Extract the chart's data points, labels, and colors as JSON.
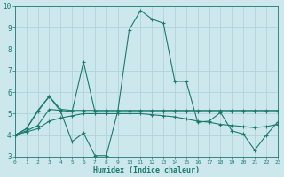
{
  "xlabel": "Humidex (Indice chaleur)",
  "bg_color": "#cde8ed",
  "grid_color": "#b0d4da",
  "line_color": "#1a7a6e",
  "xlim": [
    0,
    23
  ],
  "ylim": [
    3,
    10
  ],
  "xticks": [
    0,
    1,
    2,
    3,
    4,
    5,
    6,
    7,
    8,
    9,
    10,
    11,
    12,
    13,
    14,
    15,
    16,
    17,
    18,
    19,
    20,
    21,
    22,
    23
  ],
  "yticks": [
    3,
    4,
    5,
    6,
    7,
    8,
    9,
    10
  ],
  "series": [
    [
      4.0,
      4.3,
      5.1,
      5.8,
      5.1,
      3.7,
      4.1,
      3.05,
      3.05,
      5.1,
      8.9,
      9.8,
      9.4,
      9.2,
      6.5,
      6.5,
      4.6,
      4.65,
      5.05,
      4.2,
      4.05,
      3.3,
      4.0,
      4.6
    ],
    [
      4.0,
      4.3,
      5.15,
      5.8,
      5.2,
      5.15,
      5.15,
      5.15,
      5.15,
      5.15,
      5.15,
      5.15,
      5.15,
      5.15,
      5.15,
      5.15,
      5.15,
      5.15,
      5.15,
      5.15,
      5.15,
      5.15,
      5.15,
      5.15
    ],
    [
      4.0,
      4.15,
      4.3,
      4.65,
      4.8,
      4.9,
      5.0,
      5.0,
      5.0,
      5.0,
      5.0,
      5.0,
      4.95,
      4.9,
      4.85,
      4.75,
      4.65,
      4.6,
      4.5,
      4.45,
      4.4,
      4.35,
      4.4,
      4.5
    ],
    [
      4.0,
      4.2,
      4.45,
      5.2,
      5.15,
      5.1,
      7.4,
      5.1,
      5.1,
      5.1,
      5.1,
      5.1,
      5.1,
      5.1,
      5.1,
      5.1,
      5.1,
      5.1,
      5.1,
      5.1,
      5.1,
      5.1,
      5.1,
      5.1
    ]
  ]
}
